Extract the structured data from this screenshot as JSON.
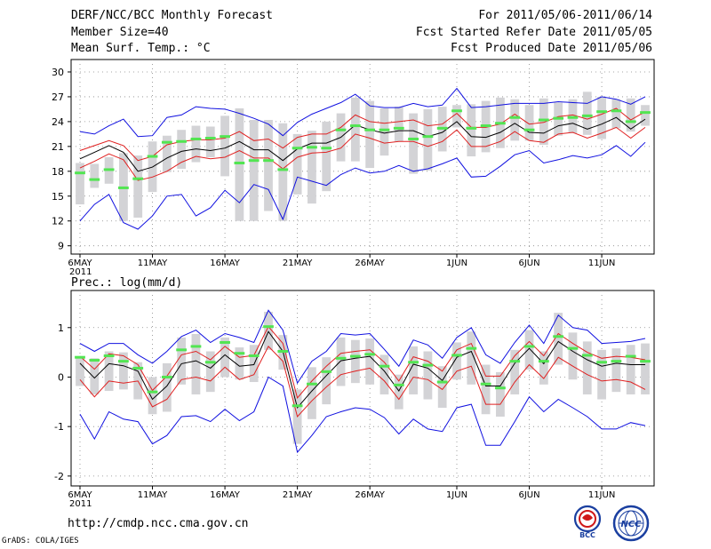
{
  "header": {
    "title": "DERF/NCC/BCC Monthly Forecast",
    "member_size": "Member Size=40",
    "variable": "Mean Surf. Temp.: °C",
    "forecast_period": "For 2011/05/06-2011/06/14",
    "started_refer": "Fcst Started Refer Date 2011/05/05",
    "produced": "Fcst Produced Date 2011/05/06"
  },
  "footer": {
    "url": "http://cmdp.ncc.cma.gov.cn",
    "credit": "GrADS: COLA/IGES"
  },
  "logos": {
    "left_label": "BCC",
    "right_label": "NCC"
  },
  "colors": {
    "box": "#d3d3d6",
    "median": "#52e552",
    "mean": "#000000",
    "sd": "#e02020",
    "range": "#1010e0"
  },
  "chart_data": [
    {
      "type": "box-ensemble",
      "title": "Mean Surf. Temp.: °C",
      "ylim": [
        8,
        31.5
      ],
      "yticks": [
        9,
        12,
        15,
        18,
        21,
        24,
        27,
        30
      ],
      "xticks": [
        "6MAY",
        "11MAY",
        "16MAY",
        "21MAY",
        "26MAY",
        "1JUN",
        "6JUN",
        "11JUN"
      ],
      "year_label": "2011",
      "days": 40,
      "median": [
        17.8,
        17.0,
        18.2,
        16.0,
        17.1,
        19.8,
        21.5,
        21.6,
        21.9,
        22.0,
        22.2,
        19.0,
        19.3,
        19.3,
        18.2,
        20.8,
        20.9,
        20.8,
        23.0,
        23.5,
        23.0,
        23.0,
        23.2,
        21.9,
        22.2,
        23.2,
        25.3,
        23.2,
        23.5,
        23.8,
        24.5,
        23.0,
        24.2,
        24.4,
        24.5,
        24.7,
        25.2,
        25.3,
        24.0,
        25.1
      ],
      "mean": [
        19.5,
        20.3,
        21.1,
        20.3,
        18.0,
        18.5,
        19.6,
        20.4,
        20.7,
        20.5,
        20.8,
        21.6,
        20.6,
        20.6,
        19.3,
        20.7,
        21.4,
        21.4,
        22.1,
        23.6,
        23.0,
        22.6,
        22.9,
        22.9,
        22.2,
        22.7,
        24.0,
        22.2,
        22.1,
        22.7,
        23.8,
        22.7,
        22.6,
        23.5,
        23.8,
        23.1,
        23.7,
        24.5,
        23.1,
        24.3
      ],
      "mean_plus_sd": [
        20.5,
        21.1,
        21.7,
        21.1,
        19.3,
        19.8,
        21.2,
        21.6,
        21.8,
        21.8,
        22.0,
        22.8,
        21.7,
        21.9,
        20.8,
        22.1,
        22.5,
        22.5,
        23.3,
        24.8,
        24.0,
        23.8,
        24.0,
        24.2,
        23.5,
        23.7,
        25.0,
        23.3,
        23.3,
        23.7,
        24.9,
        23.7,
        23.9,
        24.6,
        24.8,
        24.3,
        24.9,
        25.6,
        24.2,
        25.2
      ],
      "mean_minus_sd": [
        18.4,
        19.2,
        20.1,
        19.4,
        16.9,
        17.3,
        18.0,
        19.1,
        19.8,
        19.5,
        19.7,
        20.5,
        19.6,
        19.6,
        18.3,
        19.7,
        20.2,
        20.3,
        20.8,
        22.5,
        22.0,
        21.4,
        21.6,
        21.6,
        21.0,
        21.6,
        23.0,
        21.0,
        21.0,
        21.6,
        22.8,
        21.7,
        21.5,
        22.5,
        22.7,
        22.0,
        22.6,
        23.3,
        22.0,
        23.3
      ],
      "max": [
        22.8,
        22.5,
        23.5,
        24.3,
        22.2,
        22.3,
        24.5,
        24.8,
        25.8,
        25.6,
        25.5,
        25.0,
        24.4,
        23.7,
        22.3,
        23.9,
        24.9,
        25.6,
        26.3,
        27.3,
        25.9,
        25.7,
        25.7,
        26.2,
        25.8,
        26.0,
        28.0,
        25.7,
        25.8,
        26.0,
        26.2,
        26.2,
        26.2,
        26.4,
        26.3,
        26.2,
        27.0,
        26.7,
        26.1,
        27.0
      ],
      "min": [
        12.0,
        14.0,
        15.2,
        11.8,
        11.0,
        12.6,
        15.0,
        15.2,
        12.6,
        13.6,
        15.7,
        14.2,
        16.4,
        15.8,
        12.2,
        17.3,
        16.8,
        16.3,
        17.6,
        18.4,
        17.8,
        18.0,
        18.7,
        18.0,
        18.3,
        18.9,
        19.6,
        17.3,
        17.4,
        18.6,
        20.0,
        20.5,
        19.0,
        19.4,
        19.9,
        19.6,
        20.0,
        21.1,
        19.8,
        21.5
      ],
      "box_top": [
        19.0,
        18.9,
        19.7,
        20.2,
        19.9,
        21.6,
        22.3,
        23.0,
        23.5,
        23.4,
        24.7,
        25.6,
        24.2,
        24.2,
        23.8,
        22.5,
        22.9,
        24.0,
        25.0,
        26.9,
        26.5,
        25.6,
        25.8,
        25.0,
        25.5,
        25.8,
        26.0,
        26.1,
        26.5,
        26.9,
        26.7,
        26.0,
        26.8,
        26.3,
        26.7,
        27.6,
        27.0,
        26.7,
        26.8,
        26.0
      ],
      "box_bottom": [
        14.0,
        16.0,
        16.5,
        12.0,
        12.4,
        15.5,
        17.9,
        18.3,
        19.1,
        19.7,
        17.4,
        12.0,
        12.0,
        13.2,
        12.0,
        15.2,
        14.1,
        15.6,
        19.2,
        19.2,
        18.4,
        19.9,
        21.6,
        17.7,
        18.1,
        20.4,
        23.3,
        19.8,
        20.3,
        20.8,
        21.7,
        21.7,
        21.2,
        22.3,
        22.6,
        22.4,
        21.9,
        23.2,
        22.8,
        23.5
      ]
    },
    {
      "type": "box-ensemble",
      "title": "Prec.: log(mm/d)",
      "ylim": [
        -2.2,
        1.75
      ],
      "yticks": [
        -2,
        -1,
        0,
        1
      ],
      "xticks": [
        "6MAY",
        "11MAY",
        "16MAY",
        "21MAY",
        "26MAY",
        "1JUN",
        "6JUN",
        "11JUN"
      ],
      "year_label": "2011",
      "days": 40,
      "median": [
        0.4,
        0.34,
        0.43,
        0.32,
        0.18,
        -0.3,
        0.0,
        0.55,
        0.62,
        0.3,
        0.7,
        0.48,
        0.43,
        1.02,
        0.52,
        -0.58,
        -0.14,
        0.11,
        0.38,
        0.42,
        0.46,
        0.22,
        -0.16,
        0.3,
        0.24,
        -0.1,
        0.44,
        0.58,
        -0.14,
        -0.22,
        0.32,
        0.62,
        0.32,
        0.82,
        0.58,
        0.44,
        0.3,
        0.32,
        0.42,
        0.32
      ],
      "mean": [
        0.28,
        -0.02,
        0.27,
        0.23,
        0.12,
        -0.45,
        -0.18,
        0.27,
        0.33,
        0.18,
        0.45,
        0.22,
        0.25,
        0.92,
        0.52,
        -0.62,
        -0.28,
        0.03,
        0.33,
        0.38,
        0.42,
        0.12,
        -0.28,
        0.26,
        0.18,
        -0.07,
        0.4,
        0.52,
        -0.18,
        -0.18,
        0.28,
        0.58,
        0.27,
        0.72,
        0.52,
        0.35,
        0.22,
        0.28,
        0.25,
        0.25
      ],
      "mean_plus_sd": [
        0.42,
        0.16,
        0.47,
        0.43,
        0.25,
        -0.27,
        0.02,
        0.45,
        0.52,
        0.35,
        0.62,
        0.4,
        0.44,
        1.02,
        0.68,
        -0.42,
        -0.08,
        0.22,
        0.48,
        0.52,
        0.55,
        0.3,
        -0.08,
        0.41,
        0.32,
        0.12,
        0.55,
        0.68,
        0.02,
        0.02,
        0.43,
        0.72,
        0.43,
        0.88,
        0.68,
        0.5,
        0.38,
        0.42,
        0.4,
        0.35
      ],
      "mean_minus_sd": [
        -0.05,
        -0.4,
        -0.08,
        -0.12,
        -0.08,
        -0.6,
        -0.45,
        -0.05,
        0.0,
        -0.08,
        0.2,
        -0.05,
        0.05,
        0.62,
        0.32,
        -0.8,
        -0.48,
        -0.2,
        0.05,
        0.12,
        0.18,
        -0.08,
        -0.45,
        0.0,
        -0.05,
        -0.25,
        0.12,
        0.22,
        -0.55,
        -0.55,
        -0.1,
        0.25,
        -0.03,
        0.4,
        0.22,
        0.05,
        -0.08,
        -0.05,
        -0.1,
        -0.25
      ],
      "max": [
        0.68,
        0.52,
        0.68,
        0.68,
        0.45,
        0.28,
        0.52,
        0.82,
        0.95,
        0.7,
        0.88,
        0.8,
        0.7,
        1.35,
        0.95,
        -0.12,
        0.32,
        0.52,
        0.88,
        0.85,
        0.88,
        0.56,
        0.22,
        0.75,
        0.65,
        0.38,
        0.8,
        1.0,
        0.45,
        0.28,
        0.7,
        1.05,
        0.68,
        1.25,
        1.0,
        0.95,
        0.68,
        0.7,
        0.72,
        0.78
      ],
      "min": [
        -0.75,
        -1.25,
        -0.7,
        -0.85,
        -0.9,
        -1.35,
        -1.18,
        -0.8,
        -0.78,
        -0.9,
        -0.65,
        -0.88,
        -0.7,
        0.0,
        -0.18,
        -1.52,
        -1.18,
        -0.8,
        -0.7,
        -0.62,
        -0.65,
        -0.82,
        -1.15,
        -0.85,
        -1.05,
        -1.1,
        -0.62,
        -0.55,
        -1.38,
        -1.38,
        -0.9,
        -0.4,
        -0.7,
        -0.45,
        -0.62,
        -0.8,
        -1.05,
        -1.05,
        -0.92,
        -0.98
      ],
      "box_top": [
        0.42,
        0.38,
        0.52,
        0.5,
        0.3,
        0.0,
        0.28,
        0.8,
        0.87,
        0.52,
        0.8,
        0.6,
        0.65,
        1.32,
        0.85,
        -0.25,
        0.2,
        0.4,
        0.8,
        0.75,
        0.78,
        0.45,
        0.05,
        0.62,
        0.52,
        0.22,
        0.7,
        0.92,
        0.25,
        0.1,
        0.55,
        0.95,
        0.52,
        1.3,
        0.9,
        0.72,
        0.55,
        0.58,
        0.65,
        0.68
      ],
      "box_bottom": [
        -0.18,
        -0.35,
        -0.28,
        -0.25,
        -0.45,
        -0.75,
        -0.7,
        -0.15,
        -0.35,
        -0.3,
        0.0,
        -0.05,
        -0.1,
        0.55,
        0.15,
        -1.35,
        -0.85,
        -0.55,
        -0.18,
        -0.12,
        -0.15,
        -0.35,
        -0.65,
        -0.35,
        -0.45,
        -0.62,
        -0.05,
        -0.15,
        -0.75,
        -0.8,
        -0.35,
        0.15,
        -0.15,
        0.25,
        -0.05,
        -0.35,
        -0.45,
        -0.3,
        -0.35,
        -0.35
      ]
    }
  ]
}
